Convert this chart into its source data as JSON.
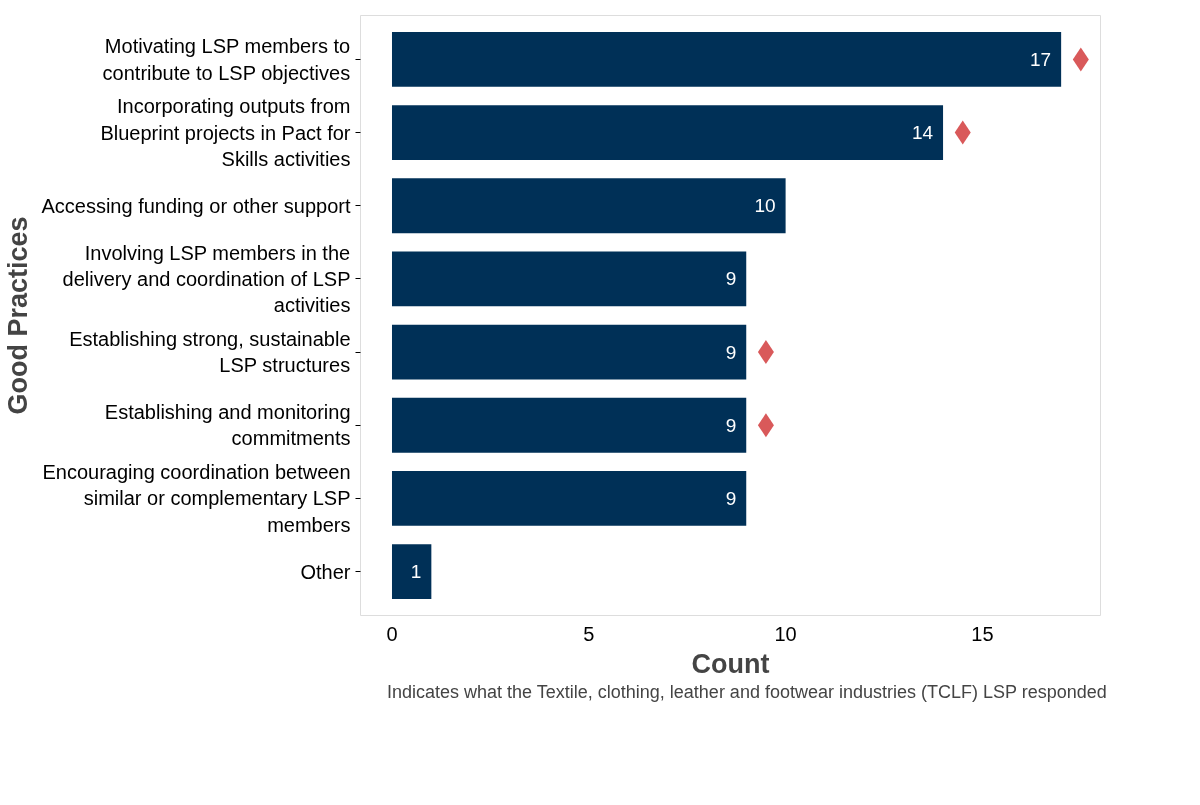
{
  "chart_data": {
    "type": "bar",
    "orientation": "horizontal",
    "xlabel": "Count",
    "ylabel": "Good Practices",
    "categories": [
      "Motivating LSP members to contribute to LSP objectives",
      "Incorporating outputs from Blueprint projects in Pact for Skills activities",
      "Accessing funding or other support",
      "Involving LSP members in the delivery and coordination of LSP activities",
      "Establishing strong, sustainable LSP structures",
      "Establishing and monitoring commitments",
      "Encouraging coordination between similar or complementary LSP members",
      "Other"
    ],
    "series": [
      {
        "color": "#003057",
        "values": [
          17,
          14,
          10,
          9,
          9,
          9,
          9,
          1
        ],
        "value_labels": [
          "17",
          "14",
          "10",
          "9",
          "9",
          "9",
          "9",
          "1"
        ]
      },
      {
        "type": "scatter",
        "name": "Indicates what the Textile, clothing, leather and footwear industries (TCLF) LSP responded",
        "color": "#d9595a",
        "marker": "diamond",
        "values": [
          17.5,
          14.5,
          null,
          null,
          9.5,
          9.5,
          null,
          null
        ]
      }
    ],
    "xlim": [
      -0.8,
      18
    ],
    "xticks": [
      0,
      5,
      10,
      15
    ],
    "grid": false,
    "legend": "bottom"
  }
}
